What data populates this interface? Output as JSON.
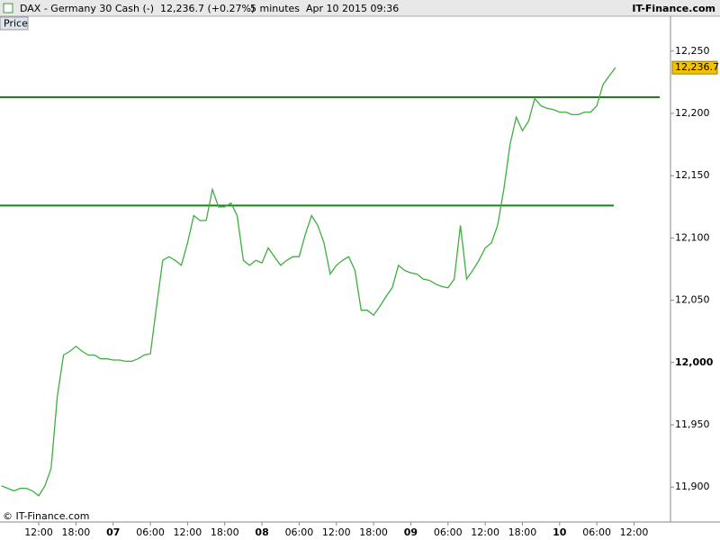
{
  "chart_data": {
    "type": "line",
    "title": "DAX - Germany 30 Cash (-)",
    "quote": "12,236.7 (+0.27%)",
    "interval": "5 minutes",
    "timestamp": "Apr 10 2015 09:36",
    "brand": "IT-Finance.com",
    "panel_label": "Price",
    "copyright": "© IT-Finance.com",
    "price_label": "12,236.7",
    "categories": [
      null,
      null,
      null,
      null,
      null,
      null,
      "12:00",
      null,
      null,
      null,
      null,
      null,
      "18:00",
      null,
      null,
      null,
      null,
      null,
      "07",
      null,
      null,
      null,
      null,
      null,
      "06:00",
      null,
      null,
      null,
      null,
      null,
      "12:00",
      null,
      null,
      null,
      null,
      null,
      "18:00",
      null,
      null,
      null,
      null,
      null,
      "08",
      null,
      null,
      null,
      null,
      null,
      "06:00",
      null,
      null,
      null,
      null,
      null,
      "12:00",
      null,
      null,
      null,
      null,
      null,
      "18:00",
      null,
      null,
      null,
      null,
      null,
      "09",
      null,
      null,
      null,
      null,
      null,
      "06:00",
      null,
      null,
      null,
      null,
      null,
      "12:00",
      null,
      null,
      null,
      null,
      null,
      "18:00",
      null,
      null,
      null,
      null,
      null,
      "10",
      null,
      null,
      null,
      null,
      null,
      "06:00",
      null,
      null,
      null,
      null,
      null,
      "12:00"
    ],
    "series": [
      {
        "name": "Price",
        "color": "#3fae3f",
        "values": [
          11901,
          11899,
          11897,
          11899,
          11899,
          11897,
          11893,
          11901,
          11915,
          11973,
          12006,
          12009,
          12013,
          12009,
          12006,
          12006,
          12003,
          12003,
          12002,
          12002,
          12001,
          12001,
          12003,
          12006,
          12007,
          12045,
          12082,
          12085,
          12082,
          12078,
          12096,
          12118,
          12114,
          12114,
          12139,
          12125,
          12125,
          12128,
          12118,
          12082,
          12078,
          12082,
          12080,
          12092,
          12085,
          12078,
          12082,
          12085,
          12085,
          12103,
          12118,
          12110,
          12096,
          12071,
          12078,
          12082,
          12085,
          12074,
          12042,
          12042,
          12038,
          12045,
          12053,
          12060,
          12078,
          12074,
          12072,
          12071,
          12067,
          12066,
          12063,
          12061,
          12060,
          12067,
          12110,
          12067,
          12074,
          12082,
          12092,
          12096,
          12110,
          12139,
          12175,
          12197,
          12186,
          12194,
          12212,
          12206,
          12204,
          12203,
          12201,
          12201,
          12199,
          12199,
          12201,
          12201,
          12206,
          12223,
          12230,
          12236.7,
          null,
          null,
          null
        ]
      }
    ],
    "levels": [
      12213,
      12126
    ],
    "level_color": "#1f7f1f",
    "ylim": [
      11872,
      12291
    ],
    "yticks": [
      {
        "value": 11900,
        "label": "11,900"
      },
      {
        "value": 11950,
        "label": "11,950"
      },
      {
        "value": 12000,
        "label": "12,000"
      },
      {
        "value": 12050,
        "label": "12,050"
      },
      {
        "value": 12100,
        "label": "12,100"
      },
      {
        "value": 12150,
        "label": "12,150"
      },
      {
        "value": 12200,
        "label": "12,200"
      },
      {
        "value": 12250,
        "label": "12,250"
      }
    ],
    "grid": false
  }
}
